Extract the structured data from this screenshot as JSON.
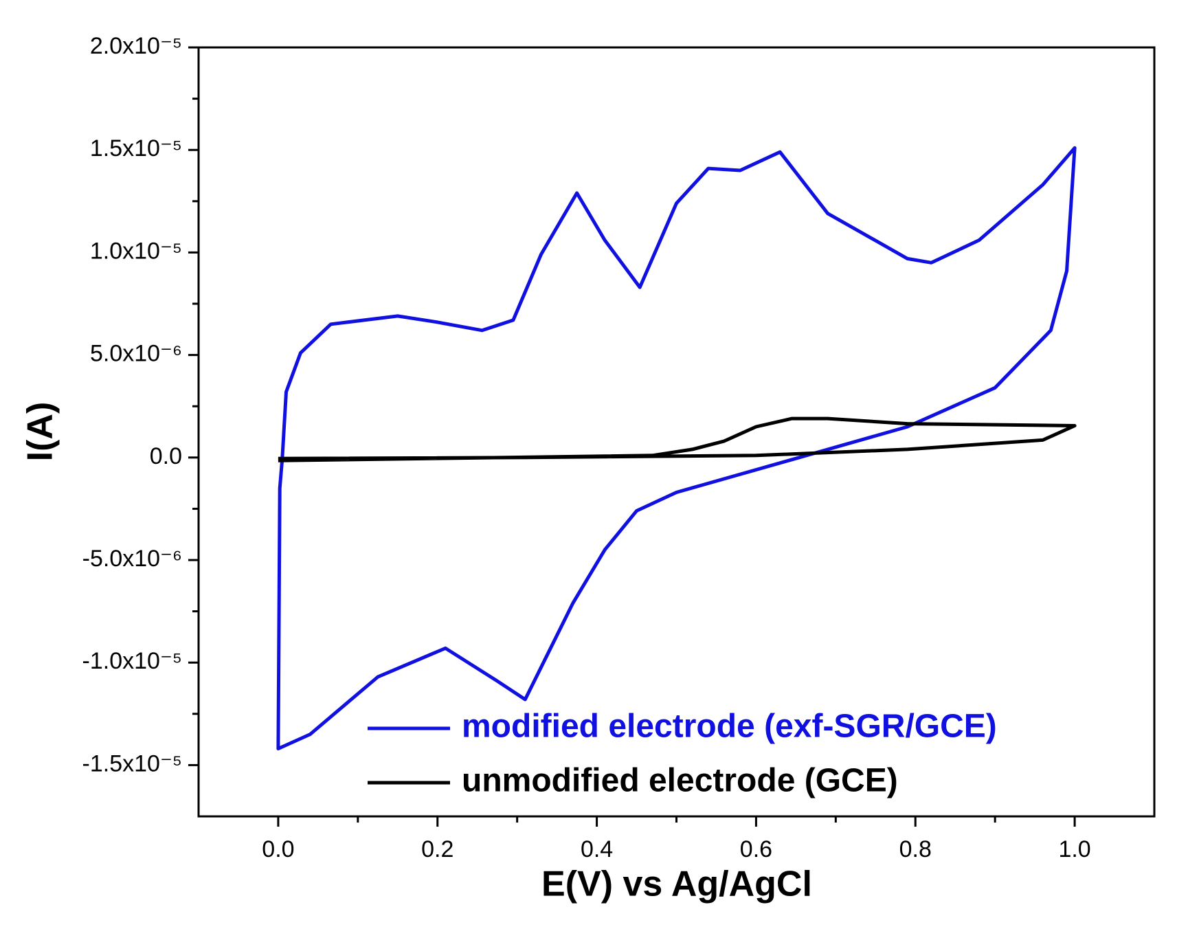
{
  "chart_data": {
    "type": "line",
    "xlabel": "E(V) vs Ag/AgCl",
    "ylabel": "I(A)",
    "xlim": [
      -0.1,
      1.1
    ],
    "ylim": [
      -1.75e-05,
      2e-05
    ],
    "xticks": [
      {
        "value": 0,
        "label": "0.0"
      },
      0.2,
      0.4,
      0.6,
      0.8,
      {
        "value": 1,
        "label": "1.0"
      }
    ],
    "yticks": [
      {
        "value": -1.5e-05,
        "label": "-1.5x10⁻⁵"
      },
      {
        "value": -1e-05,
        "label": "-1.0x10⁻⁵"
      },
      {
        "value": -5e-06,
        "label": "-5.0x10⁻⁶"
      },
      {
        "value": 0,
        "label": "0.0"
      },
      {
        "value": 5e-06,
        "label": "5.0x10⁻⁶"
      },
      {
        "value": 1e-05,
        "label": "1.0x10⁻⁵"
      },
      {
        "value": 1.5e-05,
        "label": "1.5x10⁻⁵"
      },
      {
        "value": 2e-05,
        "label": "2.0x10⁻⁵"
      }
    ],
    "legend": "lower right",
    "series": [
      {
        "name": "modified electrode (exf-SGR/GCE)",
        "color": "#1010e0",
        "x": [
          0.005,
          0.01,
          0.028,
          0.066,
          0.15,
          0.2,
          0.256,
          0.295,
          0.33,
          0.375,
          0.41,
          0.454,
          0.5,
          0.54,
          0.58,
          0.63,
          0.69,
          0.79,
          0.82,
          0.88,
          0.96,
          1.0,
          0.99,
          0.97,
          0.9,
          0.79,
          0.645,
          0.5,
          0.45,
          0.41,
          0.37,
          0.31,
          0.275,
          0.21,
          0.125,
          0.04,
          0.0,
          0.002,
          0.005
        ],
        "values": [
          -1e-07,
          3.2e-06,
          5.1e-06,
          6.5e-06,
          6.9e-06,
          6.6e-06,
          6.2e-06,
          6.7e-06,
          9.9e-06,
          1.29e-05,
          1.06e-05,
          8.3e-06,
          1.24e-05,
          1.41e-05,
          1.4e-05,
          1.49e-05,
          1.19e-05,
          9.7e-06,
          9.5e-06,
          1.06e-05,
          1.33e-05,
          1.51e-05,
          9.1e-06,
          6.2e-06,
          3.4e-06,
          1.5e-06,
          -1e-07,
          -1.7e-06,
          -2.6e-06,
          -4.5e-06,
          -7.1e-06,
          -1.18e-05,
          -1.09e-05,
          -9.3e-06,
          -1.07e-05,
          -1.35e-05,
          -1.42e-05,
          -1.5e-06,
          -1e-07
        ]
      },
      {
        "name": "unmodified electrode (GCE)",
        "color": "#000000",
        "x": [
          0.0,
          0.47,
          0.52,
          0.56,
          0.6,
          0.645,
          0.69,
          0.79,
          1.0,
          0.96,
          0.79,
          0.6,
          0.31,
          0.0
        ],
        "values": [
          -1.5e-07,
          1e-07,
          4e-07,
          8e-07,
          1.5e-06,
          1.9e-06,
          1.9e-06,
          1.65e-06,
          1.55e-06,
          8.5e-07,
          4e-07,
          1e-07,
          0,
          -5e-08
        ]
      }
    ]
  }
}
